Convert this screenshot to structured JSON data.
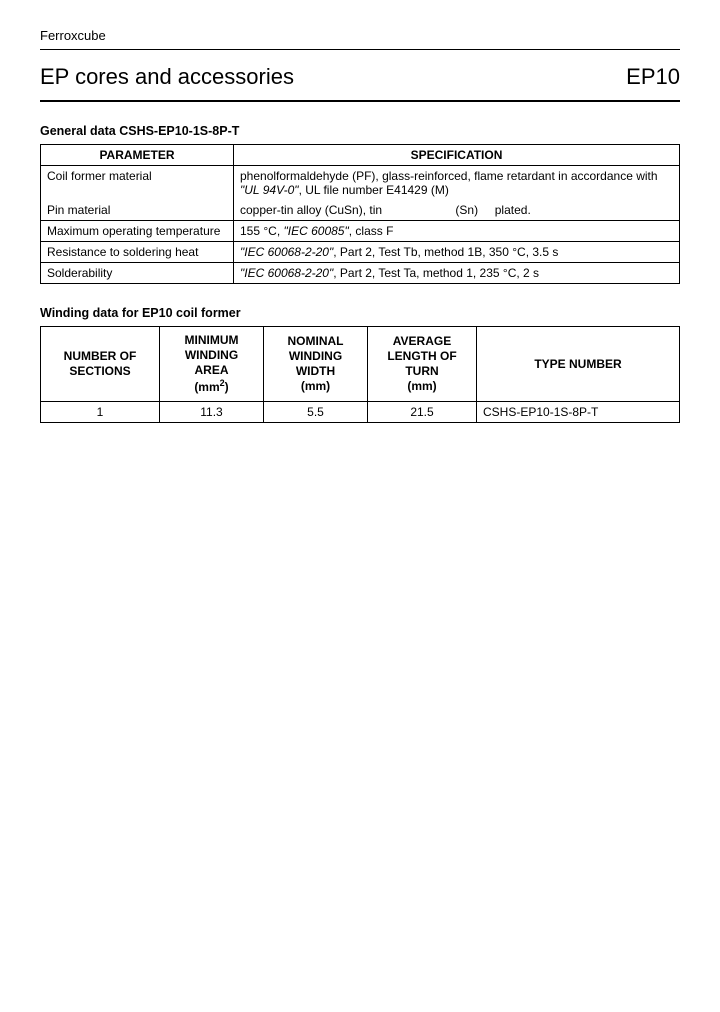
{
  "brand": "Ferroxcube",
  "title_left": "EP cores and accessories",
  "title_right": "EP10",
  "general": {
    "heading": "General data CSHS-EP10-1S-8P-T",
    "headers": {
      "param": "PARAMETER",
      "spec": "SPECIFICATION"
    },
    "rows": {
      "coil_former_material": {
        "param": "Coil former material",
        "spec_plain1": "phenolformaldehyde (PF), glass-reinforced, flame retardant in accordance with ",
        "spec_italic": "\"UL 94V-0\"",
        "spec_plain2": ", UL file number E41429 (M)"
      },
      "pin_material": {
        "param": "Pin material",
        "spec": "copper-tin alloy (CuSn), tin                      (Sn)     plated."
      },
      "max_temp": {
        "param": "Maximum operating temperature",
        "spec_plain1": "155 °C, ",
        "spec_italic": "\"IEC 60085\"",
        "spec_plain2": ", class F"
      },
      "resistance": {
        "param": "Resistance to soldering heat",
        "spec_italic": "\"IEC 60068-2-20\"",
        "spec_plain": ", Part 2, Test Tb, method 1B, 350 °C, 3.5 s"
      },
      "solderability": {
        "param": "Solderability",
        "spec_italic": "\"IEC 60068-2-20\"",
        "spec_plain": ", Part 2, Test Ta, method 1, 235 °C, 2 s"
      }
    }
  },
  "winding": {
    "heading": "Winding data for EP10 coil former",
    "headers": {
      "sections_l1": "NUMBER OF",
      "sections_l2": "SECTIONS",
      "area_l1": "MINIMUM",
      "area_l2": "WINDING",
      "area_l3": "AREA",
      "area_unit_pre": "(mm",
      "area_unit_sup": "2",
      "area_unit_post": ")",
      "width_l1": "NOMINAL",
      "width_l2": "WINDING",
      "width_l3": "WIDTH",
      "width_unit": "(mm)",
      "turn_l1": "AVERAGE",
      "turn_l2": "LENGTH OF",
      "turn_l3": "TURN",
      "turn_unit": "(mm)",
      "type": "TYPE NUMBER"
    },
    "row": {
      "sections": "1",
      "area": "11.3",
      "width": "5.5",
      "turn": "21.5",
      "type": "CSHS-EP10-1S-8P-T"
    }
  }
}
